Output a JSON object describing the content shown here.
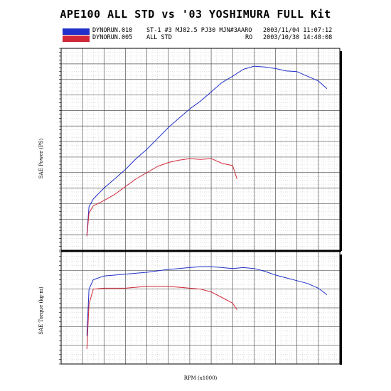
{
  "title": "APE100 ALL STD vs '03 YOSHIMURA FULL Kit",
  "legend": [
    {
      "file": "DYNORUN.010",
      "desc": "ST-1 #3 MJ82.5 PJ30 MJN#3AARO",
      "extra": "",
      "date": "2003/11/04 11:07:12",
      "color": "#2030c8"
    },
    {
      "file": "DYNORUN.005",
      "desc": "ALL STD",
      "extra": "RO",
      "date": "2003/10/30 14:48:08",
      "color": "#d02838"
    }
  ],
  "chart_data": [
    {
      "type": "line",
      "ylabel": "SAE Power (PS)",
      "xlabel": "",
      "grid": true,
      "xlim": [
        0,
        13
      ],
      "ylim": [
        0,
        13
      ],
      "series": [
        {
          "name": "DYNORUN.010",
          "color": "#2030c8",
          "points": [
            [
              1.2,
              1.0
            ],
            [
              1.3,
              2.8
            ],
            [
              1.5,
              3.3
            ],
            [
              2.0,
              4.0
            ],
            [
              2.5,
              4.6
            ],
            [
              3.0,
              5.2
            ],
            [
              3.5,
              5.9
            ],
            [
              4.0,
              6.5
            ],
            [
              4.5,
              7.2
            ],
            [
              5.0,
              7.9
            ],
            [
              5.5,
              8.5
            ],
            [
              6.0,
              9.1
            ],
            [
              6.5,
              9.6
            ],
            [
              7.0,
              10.2
            ],
            [
              7.5,
              10.8
            ],
            [
              8.0,
              11.2
            ],
            [
              8.5,
              11.65
            ],
            [
              9.0,
              11.85
            ],
            [
              9.5,
              11.8
            ],
            [
              10.0,
              11.7
            ],
            [
              10.5,
              11.55
            ],
            [
              11.0,
              11.5
            ],
            [
              11.5,
              11.2
            ],
            [
              12.0,
              10.9
            ],
            [
              12.4,
              10.4
            ]
          ]
        },
        {
          "name": "DYNORUN.005",
          "color": "#d02838",
          "points": [
            [
              1.2,
              0.9
            ],
            [
              1.3,
              2.4
            ],
            [
              1.5,
              2.85
            ],
            [
              2.0,
              3.2
            ],
            [
              2.5,
              3.6
            ],
            [
              3.0,
              4.1
            ],
            [
              3.5,
              4.6
            ],
            [
              4.0,
              5.0
            ],
            [
              4.5,
              5.4
            ],
            [
              5.0,
              5.65
            ],
            [
              5.5,
              5.8
            ],
            [
              6.0,
              5.9
            ],
            [
              6.5,
              5.85
            ],
            [
              7.0,
              5.9
            ],
            [
              7.5,
              5.6
            ],
            [
              8.0,
              5.45
            ],
            [
              8.2,
              4.6
            ]
          ]
        }
      ]
    },
    {
      "type": "line",
      "ylabel": "SAE Torque (kg-m)",
      "xlabel": "RPM (x1000)",
      "grid": true,
      "xlim": [
        0,
        13
      ],
      "ylim": [
        0,
        6
      ],
      "series": [
        {
          "name": "DYNORUN.010",
          "color": "#2030c8",
          "points": [
            [
              1.2,
              1.5
            ],
            [
              1.3,
              4.0
            ],
            [
              1.5,
              4.5
            ],
            [
              2.0,
              4.7
            ],
            [
              3.0,
              4.8
            ],
            [
              4.0,
              4.9
            ],
            [
              5.0,
              5.05
            ],
            [
              5.5,
              5.1
            ],
            [
              6.0,
              5.15
            ],
            [
              6.5,
              5.2
            ],
            [
              7.0,
              5.2
            ],
            [
              7.5,
              5.15
            ],
            [
              8.0,
              5.1
            ],
            [
              8.5,
              5.15
            ],
            [
              9.0,
              5.1
            ],
            [
              9.5,
              4.95
            ],
            [
              10.0,
              4.75
            ],
            [
              10.5,
              4.6
            ],
            [
              11.0,
              4.45
            ],
            [
              11.5,
              4.3
            ],
            [
              12.0,
              4.05
            ],
            [
              12.4,
              3.7
            ]
          ]
        },
        {
          "name": "DYNORUN.005",
          "color": "#d02838",
          "points": [
            [
              1.2,
              0.8
            ],
            [
              1.3,
              3.2
            ],
            [
              1.5,
              4.0
            ],
            [
              2.0,
              4.05
            ],
            [
              3.0,
              4.05
            ],
            [
              4.0,
              4.15
            ],
            [
              5.0,
              4.15
            ],
            [
              6.0,
              4.05
            ],
            [
              6.5,
              4.0
            ],
            [
              7.0,
              3.85
            ],
            [
              7.5,
              3.55
            ],
            [
              8.0,
              3.25
            ],
            [
              8.2,
              2.9
            ]
          ]
        }
      ]
    }
  ]
}
